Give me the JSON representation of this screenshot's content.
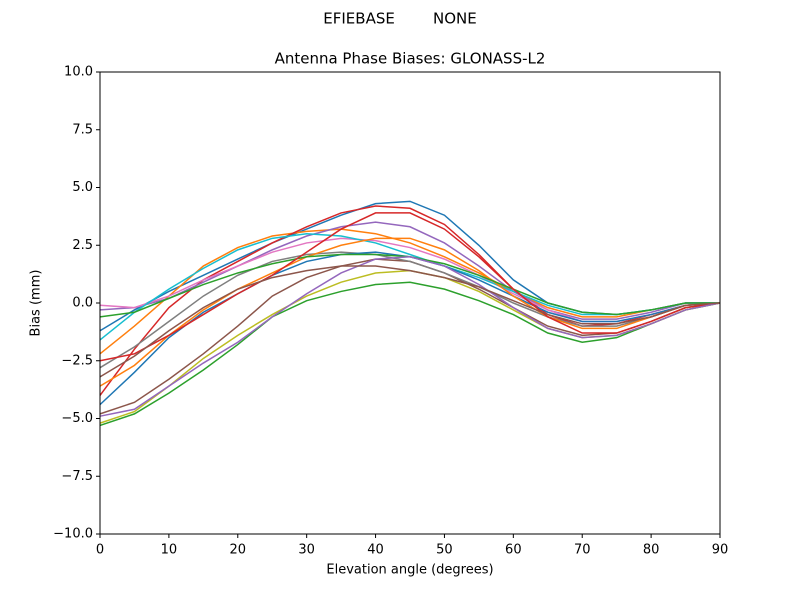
{
  "chart_data": {
    "type": "line",
    "suptitle": "EFIEBASE        NONE",
    "title": "Antenna Phase Biases: GLONASS-L2",
    "xlabel": "Elevation angle (degrees)",
    "ylabel": "Bias (mm)",
    "x": [
      0,
      5,
      10,
      15,
      20,
      25,
      30,
      35,
      40,
      45,
      50,
      55,
      60,
      65,
      70,
      75,
      80,
      85,
      90
    ],
    "xlim": [
      0,
      90
    ],
    "xticks": [
      0,
      10,
      20,
      30,
      40,
      50,
      60,
      70,
      80,
      90
    ],
    "ylim": [
      -10,
      10
    ],
    "yticks": [
      {
        "value": -10,
        "label": "−10.0"
      },
      {
        "value": -7.5,
        "label": "−7.5"
      },
      {
        "value": -5,
        "label": "−5.0"
      },
      {
        "value": -2.5,
        "label": "−2.5"
      },
      {
        "value": 0,
        "label": "0.0"
      },
      2.5,
      {
        "value": 5,
        "label": "5.0"
      },
      7.5,
      {
        "value": 10,
        "label": "10.0"
      }
    ],
    "series": [
      {
        "color": "#1f77b4",
        "values": [
          -1.2,
          -0.3,
          0.5,
          1.2,
          1.9,
          2.6,
          3.2,
          3.8,
          4.3,
          4.4,
          3.8,
          2.5,
          1.0,
          0.0,
          -0.4,
          -0.5,
          -0.3,
          0,
          0
        ]
      },
      {
        "color": "#ff7f0e",
        "values": [
          -2.2,
          -1.0,
          0.3,
          1.6,
          2.4,
          2.9,
          3.1,
          3.2,
          3.0,
          2.6,
          2.0,
          1.3,
          0.5,
          -0.2,
          -0.6,
          -0.6,
          -0.3,
          0,
          0
        ]
      },
      {
        "color": "#2ca02c",
        "values": [
          -5.3,
          -4.8,
          -3.9,
          -2.9,
          -1.8,
          -0.6,
          0.1,
          0.5,
          0.8,
          0.9,
          0.6,
          0.1,
          -0.5,
          -1.3,
          -1.7,
          -1.5,
          -0.9,
          -0.3,
          0
        ]
      },
      {
        "color": "#d62728",
        "values": [
          -4.0,
          -2.0,
          -0.2,
          1.0,
          1.8,
          2.6,
          3.3,
          3.9,
          4.2,
          4.1,
          3.4,
          2.1,
          0.6,
          -0.5,
          -1.0,
          -0.9,
          -0.5,
          -0.1,
          0
        ]
      },
      {
        "color": "#9467bd",
        "values": [
          -0.3,
          -0.2,
          0.2,
          0.9,
          1.6,
          2.3,
          2.9,
          3.3,
          3.5,
          3.3,
          2.6,
          1.6,
          0.5,
          -0.3,
          -0.7,
          -0.7,
          -0.4,
          0,
          0
        ]
      },
      {
        "color": "#8c564b",
        "values": [
          -4.8,
          -4.3,
          -3.3,
          -2.2,
          -1.0,
          0.3,
          1.1,
          1.6,
          1.9,
          1.8,
          1.3,
          0.6,
          -0.2,
          -1.0,
          -1.4,
          -1.3,
          -0.8,
          -0.2,
          0
        ]
      },
      {
        "color": "#e377c2",
        "values": [
          -0.1,
          -0.2,
          0.3,
          1.0,
          1.6,
          2.2,
          2.6,
          2.8,
          2.7,
          2.4,
          1.9,
          1.2,
          0.4,
          -0.3,
          -0.8,
          -0.8,
          -0.5,
          -0.1,
          0
        ]
      },
      {
        "color": "#7f7f7f",
        "values": [
          -2.8,
          -1.9,
          -0.8,
          0.3,
          1.2,
          1.8,
          2.1,
          2.2,
          2.1,
          1.8,
          1.3,
          0.7,
          0.0,
          -0.6,
          -1.0,
          -1.0,
          -0.6,
          -0.1,
          0
        ]
      },
      {
        "color": "#bcbd22",
        "values": [
          -5.2,
          -4.7,
          -3.6,
          -2.4,
          -1.4,
          -0.5,
          0.3,
          0.9,
          1.3,
          1.4,
          1.1,
          0.5,
          -0.3,
          -1.1,
          -1.5,
          -1.4,
          -0.9,
          -0.3,
          0
        ]
      },
      {
        "color": "#17becf",
        "values": [
          -1.6,
          -0.4,
          0.6,
          1.5,
          2.3,
          2.8,
          3.0,
          2.9,
          2.6,
          2.1,
          1.6,
          1.1,
          0.5,
          -0.1,
          -0.5,
          -0.5,
          -0.3,
          0,
          0
        ]
      },
      {
        "color": "#1f77b4",
        "values": [
          -4.4,
          -3.0,
          -1.5,
          -0.4,
          0.4,
          1.2,
          1.8,
          2.1,
          2.2,
          2.0,
          1.6,
          1.0,
          0.3,
          -0.4,
          -0.8,
          -0.8,
          -0.5,
          -0.1,
          0
        ]
      },
      {
        "color": "#ff7f0e",
        "values": [
          -3.6,
          -2.7,
          -1.4,
          -0.3,
          0.6,
          1.3,
          2.0,
          2.5,
          2.8,
          2.8,
          2.3,
          1.4,
          0.3,
          -0.6,
          -1.1,
          -1.1,
          -0.6,
          -0.1,
          0
        ]
      },
      {
        "color": "#2ca02c",
        "values": [
          -0.6,
          -0.4,
          0.2,
          0.8,
          1.3,
          1.7,
          2.0,
          2.1,
          2.1,
          2.0,
          1.7,
          1.2,
          0.6,
          0.0,
          -0.4,
          -0.5,
          -0.3,
          0,
          0
        ]
      },
      {
        "color": "#d62728",
        "values": [
          -2.5,
          -2.2,
          -1.4,
          -0.5,
          0.4,
          1.2,
          2.2,
          3.2,
          3.9,
          3.9,
          3.2,
          2.0,
          0.6,
          -0.6,
          -1.3,
          -1.3,
          -0.8,
          -0.2,
          0
        ]
      },
      {
        "color": "#9467bd",
        "values": [
          -4.9,
          -4.6,
          -3.6,
          -2.6,
          -1.7,
          -0.6,
          0.4,
          1.3,
          1.9,
          2.0,
          1.6,
          0.8,
          -0.2,
          -1.1,
          -1.5,
          -1.4,
          -0.9,
          -0.3,
          0
        ]
      },
      {
        "color": "#8c564b",
        "values": [
          -3.2,
          -2.3,
          -1.2,
          -0.2,
          0.6,
          1.1,
          1.4,
          1.6,
          1.6,
          1.4,
          1.1,
          0.7,
          0.1,
          -0.5,
          -0.9,
          -0.9,
          -0.6,
          -0.1,
          0
        ]
      }
    ]
  }
}
